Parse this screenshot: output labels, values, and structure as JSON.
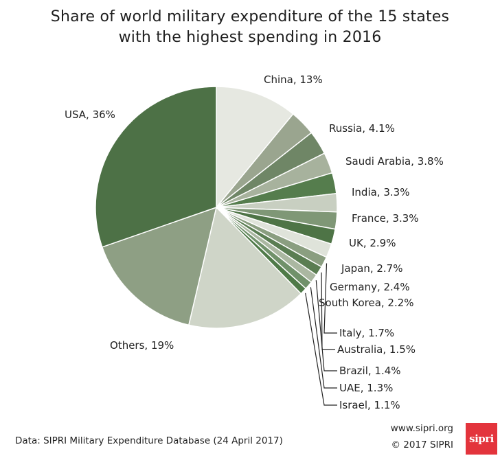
{
  "chart_data": {
    "type": "pie",
    "title": [
      "Share of world military expenditure of the 15 states",
      "with the highest spending in 2016"
    ],
    "slices": [
      {
        "name": "China",
        "value": 13,
        "label": "China, 13%",
        "color": "#e6e8e1"
      },
      {
        "name": "Russia",
        "value": 4.1,
        "label": "Russia, 4.1%",
        "color": "#9aa58f"
      },
      {
        "name": "Saudi Arabia",
        "value": 3.8,
        "label": "Saudi Arabia, 3.8%",
        "color": "#6f8666"
      },
      {
        "name": "India",
        "value": 3.3,
        "label": "India, 3.3%",
        "color": "#a7b29d"
      },
      {
        "name": "France",
        "value": 3.3,
        "label": "France, 3.3%",
        "color": "#557d4d"
      },
      {
        "name": "UK",
        "value": 2.9,
        "label": "UK, 2.9%",
        "color": "#c8cfc1"
      },
      {
        "name": "Japan",
        "value": 2.7,
        "label": "Japan, 2.7%",
        "color": "#7f9776"
      },
      {
        "name": "Germany",
        "value": 2.4,
        "label": "Germany, 2.4%",
        "color": "#4e7446"
      },
      {
        "name": "South Korea",
        "value": 2.2,
        "label": "South Korea, 2.2%",
        "color": "#dfe3da"
      },
      {
        "name": "Italy",
        "value": 1.7,
        "label": "Italy, 1.7%",
        "color": "#8a9e80"
      },
      {
        "name": "Australia",
        "value": 1.5,
        "label": "Australia, 1.5%",
        "color": "#5a7d52"
      },
      {
        "name": "Brazil",
        "value": 1.4,
        "label": "Brazil, 1.4%",
        "color": "#aab7a1"
      },
      {
        "name": "UAE",
        "value": 1.3,
        "label": "UAE, 1.3%",
        "color": "#70916a"
      },
      {
        "name": "Israel",
        "value": 1.1,
        "label": "Israel, 1.1%",
        "color": "#4f7a48"
      },
      {
        "name": "Others",
        "value": 19,
        "label": "Others, 19%",
        "color": "#cfd5c8"
      },
      {
        "name": "Others",
        "value": 19,
        "label": "",
        "color": "#8e9f84"
      },
      {
        "name": "USA",
        "value": 36,
        "label": "USA, 36%",
        "color": "#4d7146"
      }
    ]
  },
  "footer": {
    "source": "Data: SIPRI Military Expenditure Database (24 April 2017)",
    "url": "www.sipri.org",
    "copyright": "© 2017 SIPRI",
    "logo_text": "sipri",
    "logo_color": "#e3343c"
  }
}
